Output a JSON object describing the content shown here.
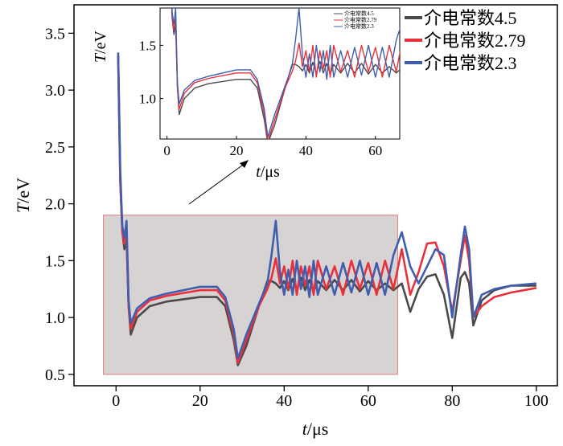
{
  "colors": {
    "s1": "#4a4a4a",
    "s2": "#e8313a",
    "s3": "#3f5eb0",
    "highlight_fill": "#d8d3d3",
    "highlight_stroke": "#e07a7a"
  },
  "chart_data": {
    "type": "line",
    "xlabel_italic": "t",
    "xlabel_unit": "/μs",
    "ylabel_italic": "T",
    "ylabel_unit": "/eV",
    "xlim": [
      -10,
      105
    ],
    "ylim": [
      0.4,
      3.75
    ],
    "xticks": [
      "0",
      "20",
      "40",
      "60",
      "80",
      "100"
    ],
    "yticks": [
      "0.5",
      "1.0",
      "1.5",
      "2.0",
      "2.5",
      "3.0",
      "3.5"
    ],
    "highlight_region": {
      "x": [
        -3,
        67
      ],
      "y": [
        0.5,
        1.9
      ]
    },
    "legend_position": "top-right",
    "series": [
      {
        "name": "介电常数4.5",
        "color": "#4a4a4a",
        "points": [
          [
            0.5,
            3.3
          ],
          [
            1,
            2.2
          ],
          [
            1.5,
            1.75
          ],
          [
            2,
            1.6
          ],
          [
            2.5,
            1.7
          ],
          [
            3,
            1.1
          ],
          [
            3.5,
            0.85
          ],
          [
            5,
            1.0
          ],
          [
            8,
            1.1
          ],
          [
            12,
            1.14
          ],
          [
            20,
            1.18
          ],
          [
            24,
            1.18
          ],
          [
            26,
            1.1
          ],
          [
            28,
            0.8
          ],
          [
            29,
            0.58
          ],
          [
            31,
            0.75
          ],
          [
            34,
            1.1
          ],
          [
            36,
            1.32
          ],
          [
            37,
            1.32
          ],
          [
            38,
            1.3
          ],
          [
            39,
            1.26
          ],
          [
            40,
            1.32
          ],
          [
            41,
            1.24
          ],
          [
            42,
            1.34
          ],
          [
            43,
            1.24
          ],
          [
            44,
            1.35
          ],
          [
            45,
            1.24
          ],
          [
            46,
            1.33
          ],
          [
            47,
            1.23
          ],
          [
            48,
            1.32
          ],
          [
            50,
            1.24
          ],
          [
            52,
            1.33
          ],
          [
            54,
            1.24
          ],
          [
            56,
            1.33
          ],
          [
            58,
            1.23
          ],
          [
            60,
            1.32
          ],
          [
            62,
            1.24
          ],
          [
            64,
            1.3
          ],
          [
            66,
            1.24
          ],
          [
            68,
            1.3
          ],
          [
            70,
            1.05
          ],
          [
            72,
            1.25
          ],
          [
            74,
            1.36
          ],
          [
            76,
            1.38
          ],
          [
            78,
            1.2
          ],
          [
            80,
            0.82
          ],
          [
            82,
            1.35
          ],
          [
            83,
            1.4
          ],
          [
            84,
            1.3
          ],
          [
            85,
            0.93
          ],
          [
            87,
            1.15
          ],
          [
            90,
            1.24
          ],
          [
            94,
            1.28
          ],
          [
            100,
            1.28
          ]
        ]
      },
      {
        "name": "介电常数2.79",
        "color": "#e8313a",
        "points": [
          [
            0.5,
            3.3
          ],
          [
            1,
            2.2
          ],
          [
            1.5,
            1.75
          ],
          [
            2,
            1.65
          ],
          [
            2.5,
            1.75
          ],
          [
            3,
            1.1
          ],
          [
            3.5,
            0.9
          ],
          [
            5,
            1.05
          ],
          [
            8,
            1.15
          ],
          [
            12,
            1.19
          ],
          [
            20,
            1.24
          ],
          [
            24,
            1.24
          ],
          [
            26,
            1.15
          ],
          [
            28,
            0.85
          ],
          [
            29,
            0.6
          ],
          [
            31,
            0.8
          ],
          [
            34,
            1.1
          ],
          [
            36,
            1.25
          ],
          [
            37,
            1.35
          ],
          [
            38,
            1.52
          ],
          [
            39,
            1.3
          ],
          [
            40,
            1.45
          ],
          [
            41,
            1.25
          ],
          [
            42,
            1.5
          ],
          [
            43,
            1.2
          ],
          [
            44,
            1.45
          ],
          [
            45,
            1.28
          ],
          [
            46,
            1.45
          ],
          [
            47,
            1.2
          ],
          [
            48,
            1.5
          ],
          [
            50,
            1.25
          ],
          [
            52,
            1.45
          ],
          [
            54,
            1.2
          ],
          [
            56,
            1.5
          ],
          [
            58,
            1.25
          ],
          [
            60,
            1.48
          ],
          [
            62,
            1.2
          ],
          [
            64,
            1.5
          ],
          [
            66,
            1.25
          ],
          [
            68,
            1.6
          ],
          [
            70,
            1.2
          ],
          [
            72,
            1.4
          ],
          [
            74,
            1.65
          ],
          [
            76,
            1.66
          ],
          [
            78,
            1.45
          ],
          [
            80,
            1.05
          ],
          [
            82,
            1.5
          ],
          [
            83,
            1.72
          ],
          [
            84,
            1.5
          ],
          [
            85,
            1.0
          ],
          [
            87,
            1.1
          ],
          [
            90,
            1.18
          ],
          [
            94,
            1.22
          ],
          [
            100,
            1.26
          ]
        ]
      },
      {
        "name": "介电常数2.3",
        "color": "#3f5eb0",
        "points": [
          [
            0.5,
            3.33
          ],
          [
            1,
            2.3
          ],
          [
            1.5,
            1.8
          ],
          [
            2,
            1.7
          ],
          [
            2.5,
            1.85
          ],
          [
            3,
            1.15
          ],
          [
            3.5,
            0.95
          ],
          [
            5,
            1.08
          ],
          [
            8,
            1.17
          ],
          [
            12,
            1.21
          ],
          [
            20,
            1.27
          ],
          [
            24,
            1.27
          ],
          [
            26,
            1.18
          ],
          [
            28,
            0.9
          ],
          [
            29,
            0.64
          ],
          [
            31,
            0.85
          ],
          [
            34,
            1.12
          ],
          [
            36,
            1.3
          ],
          [
            37,
            1.55
          ],
          [
            38,
            1.85
          ],
          [
            39,
            1.4
          ],
          [
            40,
            1.2
          ],
          [
            41,
            1.42
          ],
          [
            42,
            1.2
          ],
          [
            43,
            1.5
          ],
          [
            44,
            1.25
          ],
          [
            45,
            1.45
          ],
          [
            46,
            1.18
          ],
          [
            47,
            1.5
          ],
          [
            48,
            1.2
          ],
          [
            50,
            1.45
          ],
          [
            52,
            1.2
          ],
          [
            54,
            1.48
          ],
          [
            56,
            1.22
          ],
          [
            58,
            1.5
          ],
          [
            60,
            1.2
          ],
          [
            62,
            1.48
          ],
          [
            64,
            1.2
          ],
          [
            66,
            1.55
          ],
          [
            68,
            1.75
          ],
          [
            70,
            1.45
          ],
          [
            72,
            1.3
          ],
          [
            74,
            1.45
          ],
          [
            76,
            1.6
          ],
          [
            78,
            1.55
          ],
          [
            80,
            1.0
          ],
          [
            82,
            1.55
          ],
          [
            83,
            1.8
          ],
          [
            84,
            1.6
          ],
          [
            85,
            1.0
          ],
          [
            87,
            1.2
          ],
          [
            90,
            1.25
          ],
          [
            94,
            1.28
          ],
          [
            100,
            1.3
          ]
        ]
      }
    ],
    "inset": {
      "xlim": [
        -2,
        67
      ],
      "ylim": [
        0.62,
        1.85
      ],
      "xticks": [
        "0",
        "20",
        "40",
        "60"
      ],
      "yticks": [
        "1.0",
        "1.5"
      ],
      "xlabel_italic": "t",
      "xlabel_unit": "/μs",
      "ylabel_italic": "T",
      "ylabel_unit": "/eV"
    }
  }
}
